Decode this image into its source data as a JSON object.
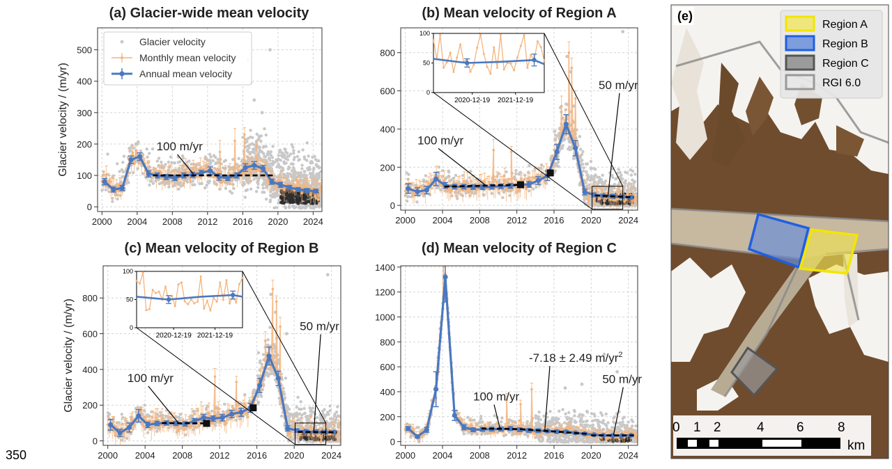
{
  "page_number": "350",
  "colors": {
    "annual": "#4a78c0",
    "monthly": "#f4b47c",
    "scatter_light": "#c8c8c8",
    "scatter_dark": "#2b2b2b",
    "trend": "#000000",
    "region_a": "#f2e600",
    "region_b": "#1f5fe0",
    "region_c": "#555555",
    "rgi": "#888888"
  },
  "chart_data": [
    {
      "id": "a",
      "type": "scatter",
      "title": "(a) Glacier-wide mean velocity",
      "xlabel": "",
      "ylabel": "Glacier velocity / (m/yr)",
      "xlim": [
        1999.5,
        2025
      ],
      "ylim": [
        -15,
        570
      ],
      "xticks": [
        2000,
        2004,
        2008,
        2012,
        2016,
        2020,
        2024
      ],
      "yticks": [
        0,
        100,
        200,
        300,
        400,
        500
      ],
      "grid": true,
      "legend": {
        "position": "top-left",
        "entries": [
          "Glacier velocity",
          "Monthly mean velocity",
          "Annual mean velocity"
        ]
      },
      "series": [
        {
          "name": "Annual mean velocity",
          "x": [
            2000.3,
            2001.3,
            2002.3,
            2003.3,
            2004.3,
            2005.3,
            2006.3,
            2007.3,
            2008.3,
            2009.3,
            2010.3,
            2011.3,
            2012.3,
            2013.3,
            2014.3,
            2015.3,
            2016.3,
            2017.3,
            2018.3,
            2019.3,
            2020.3,
            2021.3,
            2022.3,
            2023.3,
            2024.3
          ],
          "y": [
            80,
            55,
            60,
            150,
            160,
            105,
            100,
            95,
            92,
            100,
            102,
            108,
            115,
            95,
            92,
            100,
            125,
            132,
            122,
            80,
            70,
            62,
            55,
            52,
            50
          ],
          "err": [
            10,
            8,
            8,
            12,
            12,
            10,
            8,
            8,
            8,
            8,
            8,
            8,
            12,
            10,
            8,
            8,
            12,
            12,
            10,
            8,
            8,
            6,
            6,
            6,
            6
          ]
        }
      ],
      "monthly": {
        "x0": 2000.0,
        "x1": 2024.9,
        "n": 150,
        "base": "annual",
        "amp": 28,
        "spikes": [
          [
            2015.1,
            210
          ],
          [
            2016.2,
            230
          ],
          [
            2017.6,
            190
          ],
          [
            2013.4,
            175
          ]
        ]
      },
      "scatter": {
        "n": 1400,
        "x0": 2000,
        "x1": 2024.9,
        "base": "annual",
        "spread": 55,
        "dense_from": 2016.0,
        "dense_factor": 3.5,
        "high": [
          [
            2016.6,
            470
          ],
          [
            2016.9,
            395
          ],
          [
            2017.3,
            340
          ],
          [
            2018.2,
            300
          ],
          [
            2019.1,
            500
          ]
        ]
      },
      "dark_cluster": {
        "x0": 2020.3,
        "x1": 2024.6,
        "y0": 10,
        "y1": 55,
        "n": 260
      },
      "trends": [
        {
          "x0": 2005.8,
          "x1": 2019.6,
          "y0": 100,
          "y1": 100,
          "label": "100 m/yr",
          "tx": 2006.2,
          "ty": 180,
          "ax": 2010.4,
          "ay": 104
        }
      ],
      "markers": []
    },
    {
      "id": "b",
      "type": "scatter",
      "title": "(b) Mean velocity of Region A",
      "xlabel": "",
      "ylabel": "",
      "xlim": [
        1999.5,
        2025
      ],
      "ylim": [
        -25,
        930
      ],
      "xticks": [
        2000,
        2004,
        2008,
        2012,
        2016,
        2020,
        2024
      ],
      "yticks": [
        0,
        200,
        400,
        600,
        800
      ],
      "grid": true,
      "series": [
        {
          "name": "Annual mean velocity",
          "x": [
            2000.3,
            2001.3,
            2002.3,
            2003.3,
            2004.3,
            2005.3,
            2006.3,
            2007.3,
            2008.3,
            2009.3,
            2010.3,
            2011.3,
            2012.3,
            2013.3,
            2014.3,
            2015.3,
            2016.3,
            2017.3,
            2018.3,
            2019.3,
            2020.3,
            2021.3,
            2022.3,
            2023.3,
            2024.3
          ],
          "y": [
            88,
            72,
            80,
            138,
            105,
            98,
            98,
            96,
            95,
            98,
            100,
            102,
            108,
            110,
            130,
            155,
            280,
            425,
            300,
            70,
            55,
            50,
            48,
            45,
            42
          ],
          "err": [
            25,
            20,
            20,
            35,
            15,
            12,
            12,
            12,
            12,
            12,
            12,
            12,
            15,
            15,
            20,
            25,
            40,
            50,
            40,
            15,
            10,
            8,
            8,
            8,
            8
          ]
        }
      ],
      "monthly": {
        "x0": 2000.0,
        "x1": 2024.9,
        "n": 150,
        "base": "annual",
        "amp": 45,
        "spikes": [
          [
            2017.6,
            800
          ],
          [
            2017.9,
            720
          ],
          [
            2018.3,
            560
          ],
          [
            2016.8,
            520
          ],
          [
            2009.5,
            290
          ],
          [
            2011.4,
            280
          ]
        ]
      },
      "scatter": {
        "n": 900,
        "x0": 2000,
        "x1": 2024.9,
        "base": "annual",
        "spread": 70,
        "dense_from": 2016.0,
        "dense_factor": 2.5,
        "high": [
          [
            2017.4,
            780
          ],
          [
            2017.8,
            700
          ],
          [
            2018.1,
            520
          ],
          [
            2023.4,
            910
          ]
        ]
      },
      "dark_cluster": {
        "x0": 2020.5,
        "x1": 2024.5,
        "y0": 5,
        "y1": 60,
        "n": 130
      },
      "trends": [
        {
          "x0": 2004.2,
          "x1": 2012.4,
          "y0": 98,
          "y1": 108,
          "label": "100 m/yr",
          "tx": 2001.3,
          "ty": 320,
          "ax": 2008.7,
          "ay": 103
        },
        {
          "x0": 2020.4,
          "x1": 2024.6,
          "y0": 52,
          "y1": 42,
          "label": "50 m/yr",
          "tx": 2020.8,
          "ty": 610,
          "ax": 2021.8,
          "ay": 48
        }
      ],
      "markers": [
        [
          2012.4,
          108
        ],
        [
          2015.6,
          170
        ]
      ],
      "zoom_box": {
        "x0": 2020.1,
        "x1": 2023.4,
        "y0": -20,
        "y1": 100
      },
      "inset": {
        "xticks": [
          "2020-12-19",
          "2021-12-19"
        ],
        "yticks": [
          "0",
          "50",
          "100"
        ],
        "ylim": [
          0,
          100
        ],
        "xlim": [
          2019.9,
          2023.2
        ],
        "annual_x": [
          2019.9,
          2020.9,
          2021.9,
          2022.9,
          2023.2
        ],
        "annual_y": [
          57,
          50,
          52,
          55,
          48
        ],
        "err": [
          0,
          7,
          0,
          10,
          0
        ],
        "monthly_amp": 40
      }
    },
    {
      "id": "c",
      "type": "scatter",
      "title": "(c) Mean velocity of Region B",
      "xlabel": "",
      "ylabel": "Glacier velocity / (m/yr)",
      "xlim": [
        1999.5,
        2025
      ],
      "ylim": [
        -25,
        980
      ],
      "xticks": [
        2000,
        2004,
        2008,
        2012,
        2016,
        2020,
        2024
      ],
      "yticks": [
        0,
        200,
        400,
        600,
        800
      ],
      "grid": true,
      "series": [
        {
          "name": "Annual mean velocity",
          "x": [
            2000.3,
            2001.3,
            2002.3,
            2003.3,
            2004.3,
            2005.3,
            2006.3,
            2007.3,
            2008.3,
            2009.3,
            2010.3,
            2011.3,
            2012.3,
            2013.3,
            2014.3,
            2015.3,
            2016.3,
            2017.3,
            2018.3,
            2019.3,
            2020.3,
            2021.3,
            2022.3,
            2023.3,
            2024.3
          ],
          "y": [
            90,
            45,
            75,
            140,
            90,
            98,
            100,
            98,
            95,
            110,
            130,
            125,
            130,
            150,
            160,
            185,
            310,
            475,
            350,
            70,
            58,
            52,
            50,
            48,
            48
          ],
          "err": [
            30,
            20,
            25,
            35,
            15,
            12,
            12,
            12,
            12,
            15,
            18,
            15,
            18,
            20,
            22,
            25,
            40,
            50,
            40,
            15,
            10,
            8,
            8,
            8,
            8
          ]
        }
      ],
      "monthly": {
        "x0": 2000.0,
        "x1": 2024.9,
        "n": 150,
        "base": "annual",
        "amp": 50,
        "spikes": [
          [
            2017.7,
            850
          ],
          [
            2018.1,
            780
          ],
          [
            2018.5,
            640
          ],
          [
            2016.9,
            560
          ],
          [
            2011.5,
            360
          ],
          [
            2013.8,
            330
          ]
        ]
      },
      "scatter": {
        "n": 900,
        "x0": 2000,
        "x1": 2024.9,
        "base": "annual",
        "spread": 75,
        "dense_from": 2016.0,
        "dense_factor": 2.5,
        "high": [
          [
            2017.5,
            820
          ],
          [
            2018.0,
            720
          ],
          [
            2019.2,
            600
          ],
          [
            2023.6,
            930
          ]
        ]
      },
      "dark_cluster": {
        "x0": 2020.5,
        "x1": 2024.5,
        "y0": 5,
        "y1": 60,
        "n": 130
      },
      "trends": [
        {
          "x0": 2005.8,
          "x1": 2010.6,
          "y0": 100,
          "y1": 98,
          "label": "100 m/yr",
          "tx": 2002.1,
          "ty": 330,
          "ax": 2007.6,
          "ay": 99
        },
        {
          "x0": 2020.4,
          "x1": 2024.6,
          "y0": 50,
          "y1": 48,
          "label": "50 m/yr",
          "tx": 2020.6,
          "ty": 620,
          "ax": 2022.1,
          "ay": 48
        }
      ],
      "markers": [
        [
          2010.6,
          98
        ],
        [
          2015.6,
          185
        ]
      ],
      "zoom_box": {
        "x0": 2020.1,
        "x1": 2023.4,
        "y0": -20,
        "y1": 100
      },
      "inset": {
        "xticks": [
          "2020-12-19",
          "2021-12-19"
        ],
        "yticks": [
          "0",
          "50",
          "100"
        ],
        "ylim": [
          0,
          100
        ],
        "xlim": [
          2019.9,
          2023.2
        ],
        "annual_x": [
          2019.9,
          2020.9,
          2021.9,
          2022.9,
          2023.2
        ],
        "annual_y": [
          55,
          50,
          55,
          58,
          55
        ],
        "err": [
          0,
          7,
          0,
          7,
          0
        ],
        "monthly_amp": 40
      }
    },
    {
      "id": "d",
      "type": "scatter",
      "title": "(d) Mean velocity of Region C",
      "xlabel": "",
      "ylabel": "",
      "xlim": [
        1999.5,
        2025
      ],
      "ylim": [
        -30,
        1410
      ],
      "xticks": [
        2000,
        2004,
        2008,
        2012,
        2016,
        2020,
        2024
      ],
      "yticks": [
        0,
        200,
        400,
        600,
        800,
        1000,
        1200,
        1400
      ],
      "grid": true,
      "series": [
        {
          "name": "Annual mean velocity",
          "x": [
            2000.3,
            2001.3,
            2002.3,
            2003.3,
            2004.3,
            2005.3,
            2006.3,
            2007.3,
            2008.3,
            2009.3,
            2010.3,
            2011.3,
            2012.3,
            2013.3,
            2014.3,
            2015.3,
            2016.3,
            2017.3,
            2018.3,
            2019.3,
            2020.3,
            2021.3,
            2022.3,
            2023.3,
            2024.3
          ],
          "y": [
            105,
            40,
            95,
            420,
            1320,
            210,
            115,
            95,
            98,
            100,
            100,
            105,
            95,
            90,
            88,
            85,
            80,
            78,
            70,
            62,
            55,
            50,
            48,
            48,
            50
          ],
          "err": [
            15,
            10,
            20,
            140,
            200,
            40,
            20,
            15,
            15,
            15,
            15,
            15,
            15,
            15,
            15,
            12,
            12,
            12,
            10,
            10,
            8,
            8,
            8,
            8,
            8
          ]
        }
      ],
      "monthly": {
        "x0": 2000.0,
        "x1": 2024.9,
        "n": 150,
        "base": "annual",
        "amp": 40,
        "spikes": [
          [
            2004.1,
            1400
          ],
          [
            2004.5,
            1150
          ],
          [
            2003.6,
            560
          ],
          [
            2010.9,
            330
          ],
          [
            2013.6,
            420
          ],
          [
            2012.4,
            300
          ]
        ]
      },
      "scatter": {
        "n": 1000,
        "x0": 2000,
        "x1": 2024.9,
        "base": "annual",
        "spread": 80,
        "dense_from": 2014.0,
        "dense_factor": 2.5,
        "high": [
          [
            2021.4,
            700
          ],
          [
            2017.2,
            430
          ],
          [
            2019.0,
            460
          ],
          [
            2022.8,
            560
          ]
        ]
      },
      "dark_cluster": {
        "x0": 2021.0,
        "x1": 2024.5,
        "y0": 0,
        "y1": 40,
        "n": 60
      },
      "trends": [
        {
          "x0": 2008.2,
          "x1": 2012.4,
          "y0": 105,
          "y1": 100,
          "label": "100 m/yr",
          "tx": 2007.3,
          "ty": 330,
          "ax": 2010.2,
          "ay": 102
        },
        {
          "x0": 2012.4,
          "x1": 2019.6,
          "y0": 100,
          "y1": 62,
          "label": "-7.18 ± 2.49 m/yr",
          "sup": "2",
          "tx": 2013.3,
          "ty": 640,
          "ax": 2015.0,
          "ay": 85
        },
        {
          "x0": 2020.0,
          "x1": 2024.6,
          "y0": 50,
          "y1": 50,
          "label": "50 m/yr",
          "tx": 2021.2,
          "ty": 470,
          "ax": 2022.4,
          "ay": 50
        }
      ],
      "markers": []
    }
  ],
  "map": {
    "label": "(e)",
    "legend": [
      "Region A",
      "Region B",
      "Region C",
      "RGI 6.0"
    ],
    "scale_ticks": [
      "0",
      "1",
      "2",
      "4",
      "6",
      "8"
    ],
    "scale_unit": "km"
  }
}
